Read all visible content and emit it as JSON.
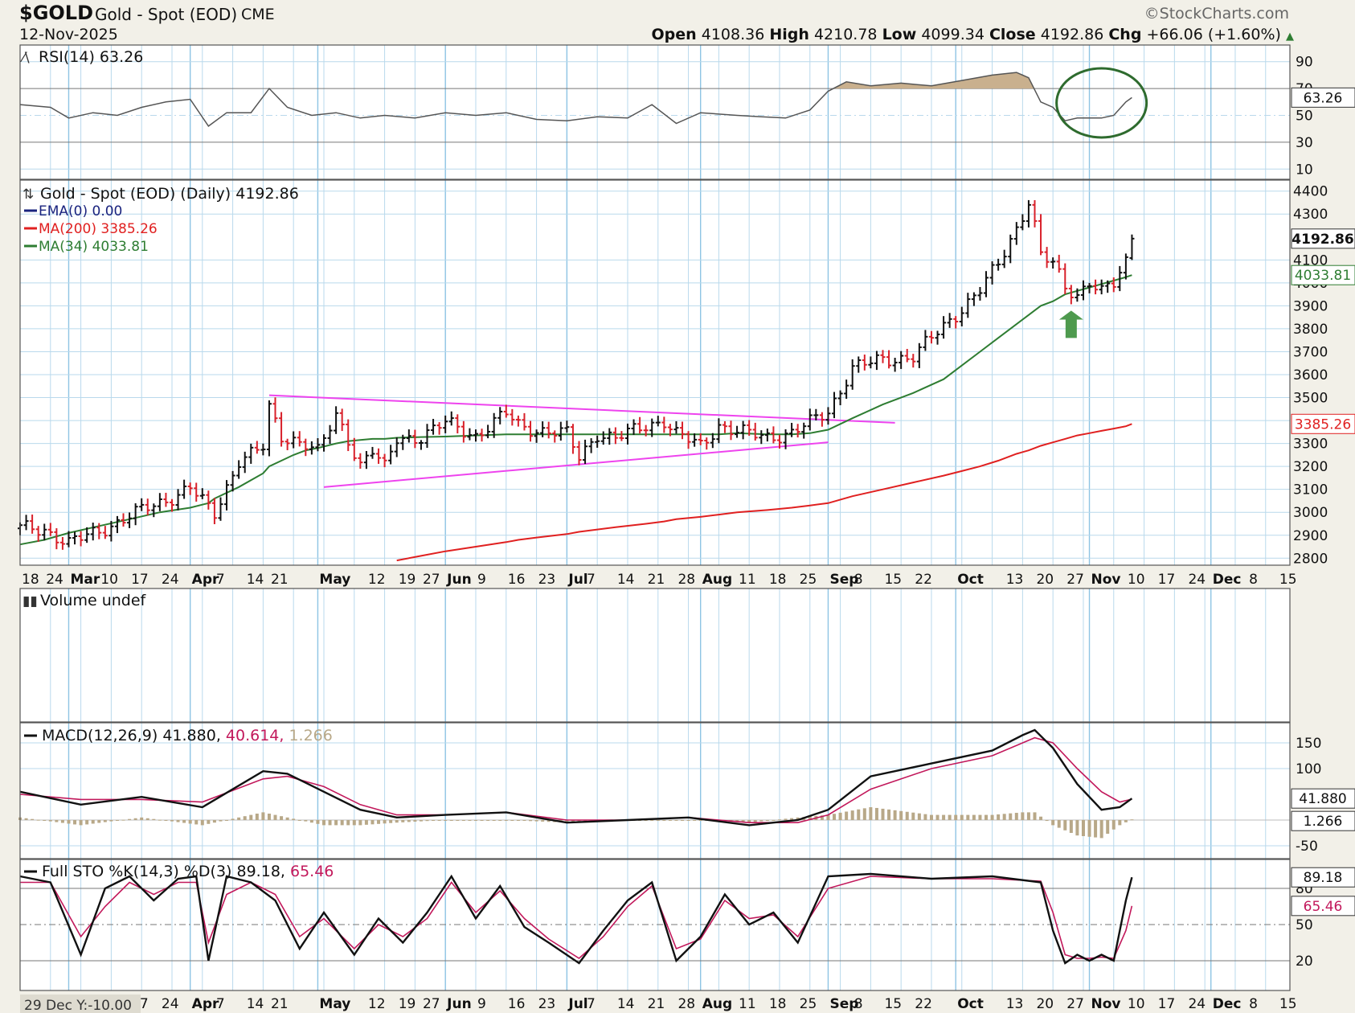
{
  "header": {
    "ticker": "$GOLD",
    "name": "Gold - Spot (EOD)",
    "exchange": "CME",
    "date": "12-Nov-2025",
    "brand": "StockCharts.com",
    "open_label": "Open",
    "open": "4108.36",
    "high_label": "High",
    "high": "4210.78",
    "low_label": "Low",
    "low": "4099.34",
    "close_label": "Close",
    "close": "4192.86",
    "chg_label": "Chg",
    "chg": "+66.06 (+1.60%)"
  },
  "colors": {
    "background": "#f2f0e8",
    "grid": "#b9d9ec",
    "up_bar": "#111111",
    "down_bar": "#d8202a",
    "ma200": "#e02020",
    "ma34": "#2e7d32",
    "ema": "#1a237e",
    "triangle": "#ee44ee",
    "macd_signal": "#c2185b",
    "histogram": "#b8a888",
    "annotation": "#2e6b2e",
    "arrow": "#4e9a4e"
  },
  "x_axis": {
    "labels": [
      {
        "t": "18",
        "i": 0
      },
      {
        "t": "24",
        "i": 4
      },
      {
        "t": "Mar",
        "i": 8,
        "bold": true
      },
      {
        "t": "10",
        "i": 13
      },
      {
        "t": "17",
        "i": 18
      },
      {
        "t": "24",
        "i": 23
      },
      {
        "t": "Apr",
        "i": 28,
        "bold": true
      },
      {
        "t": "7",
        "i": 32
      },
      {
        "t": "14",
        "i": 37
      },
      {
        "t": "21",
        "i": 41
      },
      {
        "t": "May",
        "i": 49,
        "bold": true
      },
      {
        "t": "12",
        "i": 57
      },
      {
        "t": "19",
        "i": 62
      },
      {
        "t": "27",
        "i": 66
      },
      {
        "t": "Jun",
        "i": 70,
        "bold": true
      },
      {
        "t": "9",
        "i": 75
      },
      {
        "t": "16",
        "i": 80
      },
      {
        "t": "23",
        "i": 85
      },
      {
        "t": "Jul",
        "i": 90,
        "bold": true
      },
      {
        "t": "7",
        "i": 93
      },
      {
        "t": "14",
        "i": 98
      },
      {
        "t": "21",
        "i": 103
      },
      {
        "t": "28",
        "i": 108
      },
      {
        "t": "Aug",
        "i": 112,
        "bold": true
      },
      {
        "t": "11",
        "i": 118
      },
      {
        "t": "18",
        "i": 123
      },
      {
        "t": "25",
        "i": 128
      },
      {
        "t": "Sep",
        "i": 133,
        "bold": true
      },
      {
        "t": "8",
        "i": 137
      },
      {
        "t": "15",
        "i": 142
      },
      {
        "t": "22",
        "i": 147
      },
      {
        "t": "Oct",
        "i": 154,
        "bold": true
      },
      {
        "t": "13",
        "i": 162
      },
      {
        "t": "20",
        "i": 167
      },
      {
        "t": "27",
        "i": 172
      },
      {
        "t": "Nov",
        "i": 176,
        "bold": true
      },
      {
        "t": "10",
        "i": 182
      },
      {
        "t": "17",
        "i": 187
      },
      {
        "t": "24",
        "i": 192
      },
      {
        "t": "Dec",
        "i": 196,
        "bold": true
      },
      {
        "t": "8",
        "i": 202
      },
      {
        "t": "15",
        "i": 207
      }
    ],
    "footer_note": "29 Dec Y:-10.00"
  },
  "rsi_panel": {
    "title": "RSI(14) 63.26",
    "ticks": [
      90,
      70,
      50,
      30,
      10
    ],
    "last_value_label": "63.26"
  },
  "price_panel": {
    "title": "Gold - Spot (EOD) (Daily) 4192.86",
    "legend": [
      {
        "label": "EMA(0) 0.00",
        "color": "#1a237e"
      },
      {
        "label": "MA(200) 3385.26",
        "color": "#e02020"
      },
      {
        "label": "MA(34) 4033.81",
        "color": "#2e7d32"
      }
    ],
    "ticks": [
      4400,
      4300,
      4100,
      4000,
      3900,
      3800,
      3700,
      3600,
      3500,
      3400,
      3300,
      3200,
      3100,
      3000,
      2900,
      2800
    ],
    "close_label": "4192.86",
    "ma34_label": "4033.81",
    "ma200_label": "3385.26"
  },
  "volume_panel": {
    "title": "Volume undef"
  },
  "macd_panel": {
    "title_prefix": "MACD(12,26,9)",
    "macd_value": "41.880",
    "signal_value": "40.614",
    "hist_value": "1.266",
    "ticks": [
      150,
      100,
      -50
    ],
    "macd_label": "41.880",
    "hist_label": "1.266"
  },
  "sto_panel": {
    "title_prefix": "Full STO %K(14,3) %D(3)",
    "k_value": "89.18",
    "d_value": "65.46",
    "ticks": [
      80,
      50,
      20
    ],
    "k_label": "89.18",
    "d_label": "65.46"
  },
  "chart_data": {
    "type": "line",
    "title": "Gold - Spot (EOD) (Daily)",
    "x_dates_label_index": "trading-day index, 0 = 18 Feb 2025",
    "x": [
      0,
      4,
      8,
      13,
      18,
      23,
      28,
      31,
      32,
      36,
      40,
      41,
      43,
      45,
      47,
      49,
      52,
      54,
      56,
      58,
      60,
      62,
      66,
      70,
      75,
      80,
      82,
      85,
      90,
      92,
      95,
      98,
      103,
      106,
      108,
      112,
      115,
      118,
      123,
      127,
      130,
      133,
      137,
      142,
      147,
      152,
      155,
      158,
      161,
      164,
      166,
      167,
      168,
      170,
      172,
      174,
      176,
      178,
      180,
      182,
      183
    ],
    "series": [
      {
        "name": "Close",
        "values": [
          2930,
          2925,
          2865,
          2918,
          2985,
          3040,
          3110,
          3015,
          2990,
          3230,
          3280,
          3450,
          3330,
          3320,
          3300,
          3260,
          3420,
          3320,
          3210,
          3270,
          3190,
          3320,
          3330,
          3390,
          3335,
          3430,
          3380,
          3360,
          3340,
          3240,
          3345,
          3320,
          3380,
          3400,
          3340,
          3290,
          3380,
          3350,
          3330,
          3345,
          3390,
          3440,
          3630,
          3665,
          3680,
          3810,
          3890,
          3970,
          4080,
          4240,
          4360,
          4250,
          4120,
          4080,
          3980,
          3950,
          4010,
          3960,
          3990,
          4090,
          4192.86
        ]
      },
      {
        "name": "MA(34)",
        "values": [
          2860,
          2880,
          2910,
          2940,
          2970,
          3000,
          3020,
          3040,
          3060,
          3110,
          3170,
          3200,
          3225,
          3250,
          3270,
          3280,
          3300,
          3310,
          3315,
          3320,
          3320,
          3325,
          3328,
          3330,
          3335,
          3340,
          3340,
          3340,
          3340,
          3340,
          3340,
          3340,
          3340,
          3340,
          3340,
          3340,
          3340,
          3345,
          3340,
          3340,
          3345,
          3360,
          3410,
          3470,
          3520,
          3580,
          3640,
          3700,
          3760,
          3820,
          3860,
          3880,
          3900,
          3920,
          3950,
          3965,
          3980,
          3995,
          4010,
          4025,
          4033.81
        ]
      },
      {
        "name": "MA(200)",
        "values": [
          null,
          null,
          null,
          null,
          null,
          null,
          null,
          null,
          null,
          null,
          null,
          null,
          null,
          null,
          null,
          null,
          null,
          null,
          null,
          null,
          null,
          2790,
          2810,
          2830,
          2850,
          2870,
          2880,
          2890,
          2905,
          2915,
          2925,
          2935,
          2950,
          2960,
          2970,
          2980,
          2990,
          3000,
          3010,
          3020,
          3030,
          3040,
          3070,
          3100,
          3130,
          3160,
          3180,
          3200,
          3225,
          3255,
          3270,
          3280,
          3290,
          3305,
          3320,
          3335,
          3345,
          3355,
          3365,
          3375,
          3385.26
        ]
      }
    ],
    "ylim": [
      2780,
      4420
    ]
  },
  "indicator_data": {
    "rsi": {
      "x": [
        0,
        5,
        8,
        12,
        16,
        20,
        24,
        28,
        31,
        34,
        38,
        41,
        44,
        48,
        52,
        56,
        60,
        65,
        70,
        75,
        80,
        85,
        90,
        95,
        100,
        104,
        108,
        112,
        118,
        122,
        126,
        130,
        133,
        136,
        140,
        145,
        150,
        155,
        160,
        164,
        166,
        168,
        170,
        172,
        174,
        176,
        178,
        180,
        182,
        183
      ],
      "values": [
        58,
        56,
        48,
        52,
        50,
        56,
        60,
        62,
        42,
        52,
        52,
        70,
        56,
        50,
        52,
        48,
        50,
        48,
        52,
        50,
        52,
        47,
        46,
        49,
        48,
        58,
        44,
        52,
        50,
        49,
        48,
        54,
        68,
        75,
        72,
        74,
        72,
        76,
        80,
        82,
        78,
        60,
        56,
        46,
        48,
        48,
        48,
        50,
        60,
        63.26
      ]
    },
    "macd": {
      "x": [
        0,
        10,
        20,
        30,
        40,
        44,
        50,
        56,
        62,
        70,
        80,
        90,
        100,
        110,
        120,
        128,
        133,
        140,
        150,
        160,
        165,
        167,
        170,
        174,
        178,
        181,
        183
      ],
      "macd": [
        55,
        30,
        45,
        25,
        95,
        90,
        55,
        20,
        5,
        10,
        15,
        -5,
        0,
        5,
        -10,
        0,
        20,
        85,
        110,
        135,
        165,
        175,
        140,
        70,
        20,
        25,
        41.88
      ],
      "signal": [
        50,
        40,
        40,
        35,
        80,
        85,
        65,
        30,
        10,
        10,
        15,
        0,
        0,
        5,
        -5,
        -5,
        10,
        60,
        100,
        125,
        150,
        160,
        150,
        100,
        55,
        35,
        40.614
      ]
    },
    "sto": {
      "x": [
        0,
        5,
        10,
        14,
        18,
        22,
        26,
        29,
        31,
        34,
        38,
        42,
        46,
        50,
        55,
        59,
        63,
        67,
        71,
        75,
        79,
        83,
        87,
        92,
        96,
        100,
        104,
        108,
        112,
        116,
        120,
        124,
        128,
        133,
        140,
        150,
        160,
        168,
        170,
        172,
        174,
        176,
        178,
        180,
        182,
        183
      ],
      "k": [
        90,
        85,
        25,
        80,
        90,
        70,
        88,
        90,
        20,
        90,
        85,
        70,
        30,
        60,
        25,
        55,
        35,
        60,
        90,
        55,
        82,
        48,
        35,
        18,
        45,
        70,
        85,
        20,
        40,
        75,
        50,
        60,
        35,
        90,
        92,
        88,
        90,
        85,
        45,
        18,
        25,
        20,
        25,
        20,
        70,
        89.18
      ],
      "d": [
        85,
        85,
        40,
        65,
        85,
        75,
        85,
        85,
        35,
        75,
        85,
        75,
        40,
        55,
        30,
        50,
        40,
        55,
        85,
        60,
        78,
        55,
        38,
        22,
        40,
        65,
        82,
        30,
        38,
        70,
        55,
        58,
        40,
        80,
        90,
        88,
        88,
        86,
        60,
        25,
        22,
        22,
        23,
        22,
        45,
        65.46
      ]
    }
  }
}
